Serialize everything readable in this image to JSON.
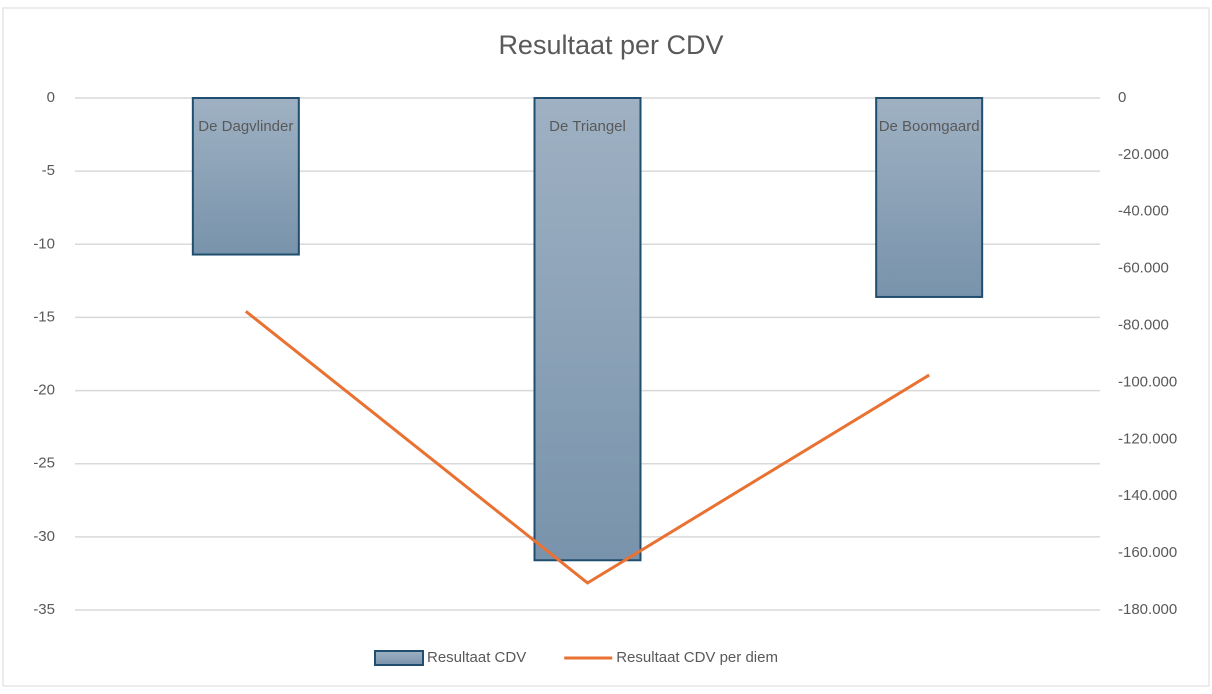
{
  "chart_data": {
    "type": "bar",
    "title": "Resultaat per CDV",
    "categories": [
      "De Dagvlinder",
      "De Triangel",
      "De Boomgaard"
    ],
    "series": [
      {
        "name": "Resultaat CDV",
        "type": "bar",
        "color": "#7f98b0",
        "values": [
          -10.7,
          -31.6,
          -13.6
        ]
      },
      {
        "name": "Resultaat  CDV per diem",
        "type": "line",
        "axis": "y2",
        "color": "#e97132",
        "values": [
          -75000,
          -170500,
          -97400
        ]
      }
    ],
    "ylim": [
      -35,
      0
    ],
    "yticks": [
      0,
      -5,
      -10,
      -15,
      -20,
      -25,
      -30,
      -35
    ],
    "y2lim": [
      -180000,
      0
    ],
    "y2ticks": [
      0,
      {
        "value": -20000,
        "label": "-20.000"
      },
      {
        "value": -40000,
        "label": "-40.000"
      },
      {
        "value": -60000,
        "label": "-60.000"
      },
      {
        "value": -80000,
        "label": "-80.000"
      },
      {
        "value": -100000,
        "label": "-100.000"
      },
      {
        "value": -120000,
        "label": "-120.000"
      },
      {
        "value": -140000,
        "label": "-140.000"
      },
      {
        "value": -160000,
        "label": "-160.000"
      },
      {
        "value": -180000,
        "label": "-180.000"
      }
    ],
    "grid": true,
    "legend": "bottom"
  }
}
